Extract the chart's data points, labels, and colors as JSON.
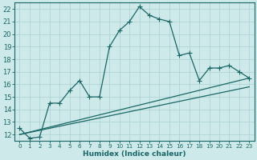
{
  "xlabel": "Humidex (Indice chaleur)",
  "bg_color": "#cee9e9",
  "line_color": "#1a6666",
  "grid_color": "#b0d4d4",
  "xlim": [
    -0.5,
    23.5
  ],
  "ylim": [
    11.5,
    22.5
  ],
  "xticks": [
    0,
    1,
    2,
    3,
    4,
    5,
    6,
    7,
    8,
    9,
    10,
    11,
    12,
    13,
    14,
    15,
    16,
    17,
    18,
    19,
    20,
    21,
    22,
    23
  ],
  "yticks": [
    12,
    13,
    14,
    15,
    16,
    17,
    18,
    19,
    20,
    21,
    22
  ],
  "line1_x": [
    0,
    1,
    2,
    3,
    4,
    5,
    6,
    7,
    8,
    9,
    10,
    11,
    12,
    13,
    14,
    15,
    16,
    17,
    18,
    19,
    20,
    21,
    22,
    23
  ],
  "line1_y": [
    12.5,
    11.7,
    11.8,
    14.5,
    14.5,
    15.5,
    16.3,
    15.0,
    15.0,
    19.0,
    20.3,
    21.0,
    22.2,
    21.5,
    21.2,
    21.0,
    18.3,
    18.5,
    16.3,
    17.3,
    17.3,
    17.5,
    17.0,
    16.5
  ],
  "line2_x": [
    0,
    23
  ],
  "line2_y": [
    12.0,
    16.5
  ],
  "line3_x": [
    0,
    23
  ],
  "line3_y": [
    12.0,
    15.8
  ]
}
